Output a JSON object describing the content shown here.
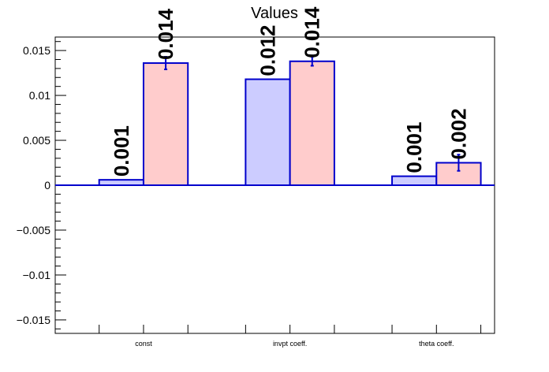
{
  "chart_data": {
    "type": "bar",
    "title": "Values",
    "categories": [
      "const",
      "invpt coeff.",
      "theta coeff."
    ],
    "series": [
      {
        "values": [
          0.0006,
          0.0118,
          0.001
        ],
        "errors": [
          0,
          0,
          0
        ],
        "labels": [
          "0.001",
          "0.012",
          "0.001"
        ]
      },
      {
        "values": [
          0.0136,
          0.0138,
          0.0025
        ],
        "errors": [
          0.0007,
          0.0005,
          0.0009
        ],
        "labels": [
          "0.014",
          "0.014",
          "0.002"
        ]
      }
    ],
    "ylim": [
      -0.0165,
      0.0165
    ],
    "yticks": [
      -0.015,
      -0.01,
      -0.005,
      0,
      0.005,
      0.01,
      0.015
    ],
    "ytick_labels": [
      "−0.015",
      "−0.01",
      "−0.005",
      "0",
      "0.005",
      "0.01",
      "0.015"
    ],
    "grid": false,
    "colors": {
      "series_fill": [
        "#ccccff",
        "#ffcccc"
      ],
      "bar_stroke": "#0000cc",
      "axis": "#000000"
    }
  }
}
